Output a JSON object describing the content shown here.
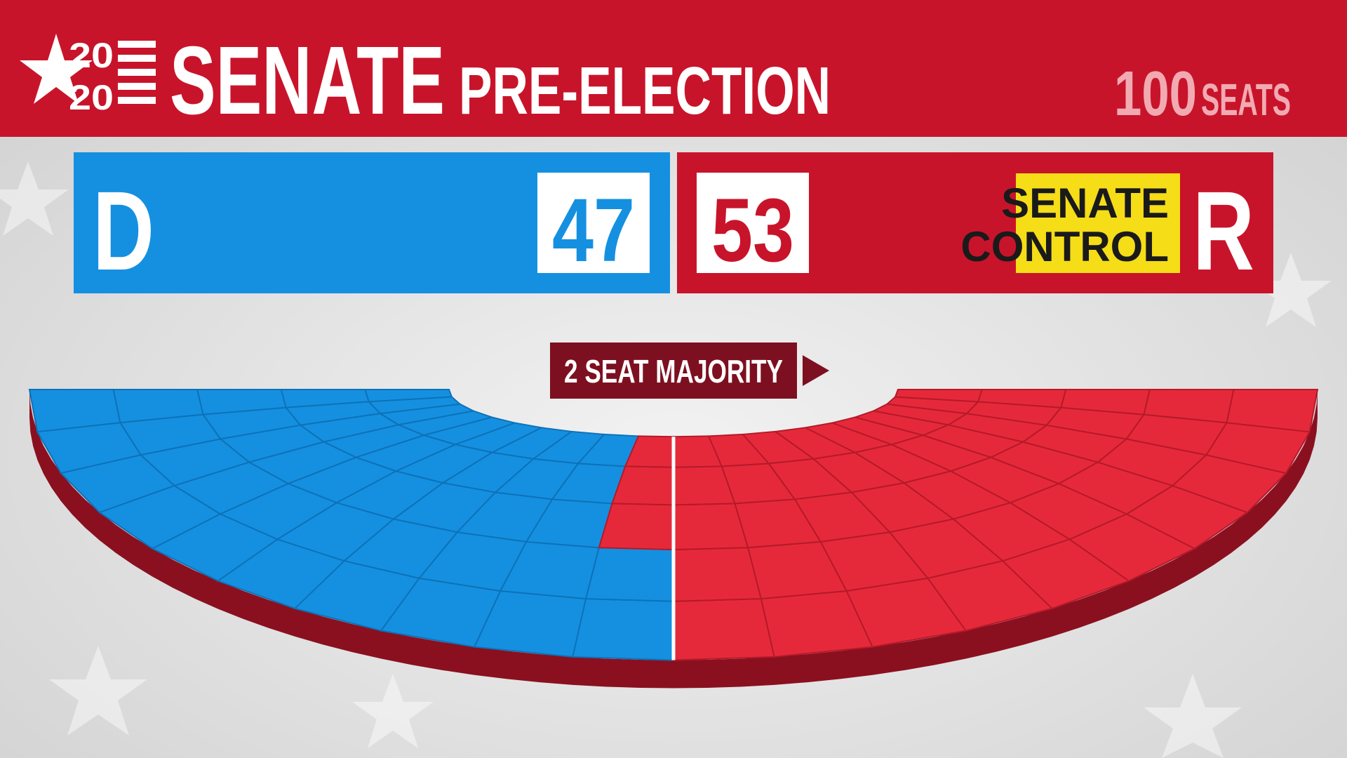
{
  "chart_data": {
    "type": "parliament",
    "logo": {
      "top": "20",
      "bottom": "20"
    },
    "title": "SENATE",
    "subtitle": "PRE-ELECTION",
    "total": 100,
    "total_label": "SEATS",
    "series": [
      {
        "name": "D",
        "color": "#1590e0",
        "value": 47
      },
      {
        "name": "R",
        "color": "#e6293a",
        "value": 53
      }
    ],
    "control_label": "SENATE CONTROL",
    "annotation": "2 SEAT MAJORITY"
  }
}
